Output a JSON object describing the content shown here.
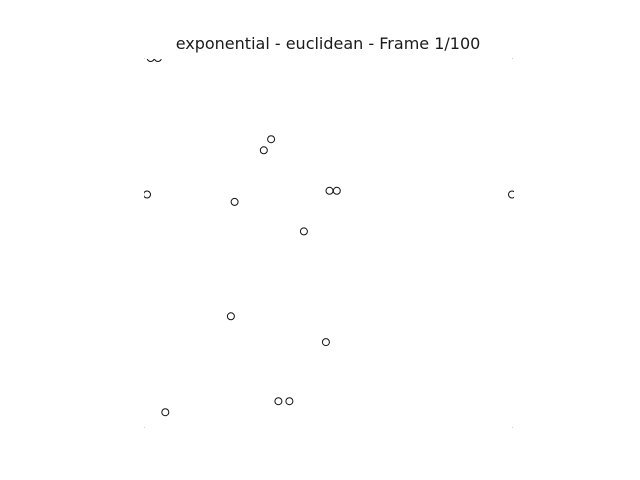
{
  "figure": {
    "title": "exponential - euclidean - Frame 1/100"
  },
  "chart_data": {
    "type": "scatter",
    "title": "exponential - euclidean - Frame 1/100",
    "xlabel": "",
    "ylabel": "",
    "xlim": [
      0,
      1
    ],
    "ylim": [
      0,
      1
    ],
    "axes_visible": false,
    "grid": false,
    "legend": "none",
    "marker": "hollow-circle",
    "colors": {
      "marker_edge": "#111111",
      "background": "#ffffff"
    },
    "points": [
      {
        "x": 0.01,
        "y": 1.0
      },
      {
        "x": 0.03,
        "y": 1.0
      },
      {
        "x": 0.34,
        "y": 0.78
      },
      {
        "x": 0.32,
        "y": 0.75
      },
      {
        "x": 0.0,
        "y": 0.63
      },
      {
        "x": 0.24,
        "y": 0.61
      },
      {
        "x": 0.5,
        "y": 0.64
      },
      {
        "x": 0.52,
        "y": 0.64
      },
      {
        "x": 1.0,
        "y": 0.63
      },
      {
        "x": 0.43,
        "y": 0.53
      },
      {
        "x": 0.23,
        "y": 0.3
      },
      {
        "x": 0.49,
        "y": 0.23
      },
      {
        "x": 0.36,
        "y": 0.07
      },
      {
        "x": 0.39,
        "y": 0.07
      },
      {
        "x": 0.05,
        "y": 0.04
      }
    ]
  }
}
